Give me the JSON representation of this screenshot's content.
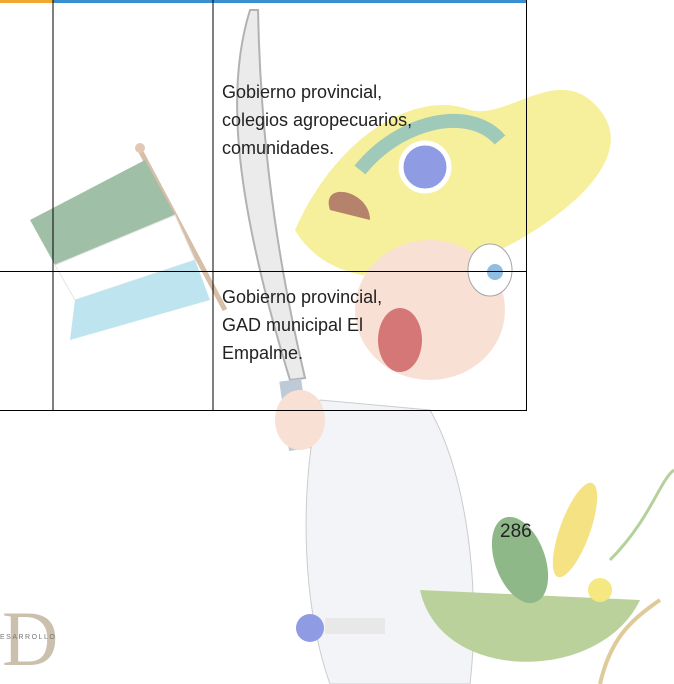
{
  "table": {
    "rows": [
      [
        "Gobierno provincial,\ncolegios agropecuarios,\ncomunidades."
      ],
      [
        "Gobierno provincial,\nGAD municipal El\nEmpalme."
      ]
    ]
  },
  "page_number": "286",
  "logo": {
    "letter": "D",
    "text": "ESARROLLO"
  }
}
